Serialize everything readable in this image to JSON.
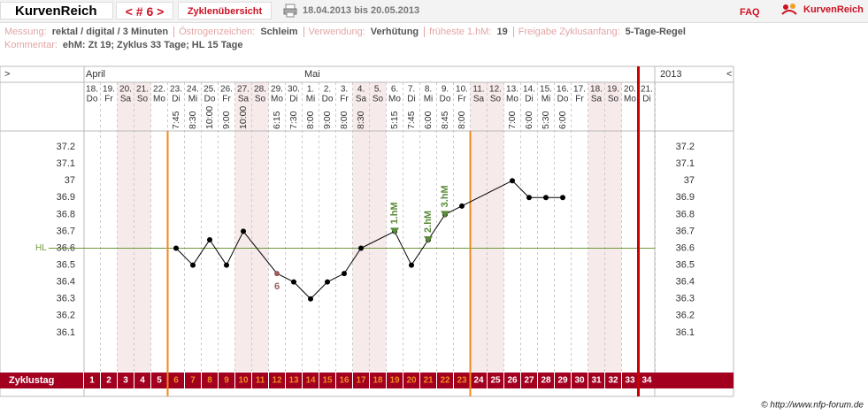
{
  "header": {
    "app": "KurvenReich",
    "cycle_nav": "< # 6 >",
    "overview": "Zyklenübersicht",
    "range": "18.04.2013 bis 20.05.2013",
    "faq": "FAQ",
    "logo": "KurvenReich"
  },
  "info": {
    "rows": [
      [
        {
          "label": "Messung:",
          "value": "rektal / digital / 3 Minuten"
        },
        {
          "label": "Östrogenzeichen:",
          "value": "Schleim"
        },
        {
          "label": "Verwendung:",
          "value": "Verhütung"
        },
        {
          "label": "früheste 1.hM:",
          "value": "19"
        },
        {
          "label": "Freigabe Zyklusanfang:",
          "value": "5-Tage-Regel"
        }
      ],
      [
        {
          "label": "Kommentar:",
          "value": "ehM: Zt 19; Zyklus 33 Tage; HL 15 Tage"
        }
      ]
    ]
  },
  "footer": "© http://www.nfp-forum.de",
  "chart_data": {
    "type": "line",
    "nav": [
      ">",
      "<"
    ],
    "year": "2013",
    "months": [
      "April",
      "Mai"
    ],
    "cycle_label": "Zyklustag",
    "cycle_days": [
      1,
      2,
      3,
      4,
      5,
      6,
      7,
      8,
      9,
      10,
      11,
      12,
      13,
      14,
      15,
      16,
      17,
      18,
      19,
      20,
      21,
      22,
      23,
      24,
      25,
      26,
      27,
      28,
      29,
      30,
      31,
      32,
      33,
      34
    ],
    "dates": [
      "18.",
      "19.",
      "20.",
      "21.",
      "22.",
      "23.",
      "24.",
      "25.",
      "26.",
      "27.",
      "28.",
      "29.",
      "30.",
      "1.",
      "2.",
      "3.",
      "4.",
      "5.",
      "6.",
      "7.",
      "8.",
      "9.",
      "10.",
      "11.",
      "12.",
      "13.",
      "14.",
      "15.",
      "16.",
      "17.",
      "18.",
      "19.",
      "20.",
      "21."
    ],
    "weekdays": [
      "Do",
      "Fr",
      "Sa",
      "So",
      "Mo",
      "Di",
      "Mi",
      "Do",
      "Fr",
      "Sa",
      "So",
      "Mo",
      "Di",
      "Mi",
      "Do",
      "Fr",
      "Sa",
      "So",
      "Mo",
      "Di",
      "Mi",
      "Do",
      "Fr",
      "Sa",
      "So",
      "Mo",
      "Di",
      "Mi",
      "Do",
      "Fr",
      "Sa",
      "So",
      "Mo",
      "Di"
    ],
    "times": [
      null,
      null,
      null,
      null,
      null,
      "7:45",
      "8:30",
      "10:00",
      "9:00",
      "10:00",
      null,
      "6:15",
      "7:30",
      "8:00",
      "9:00",
      "8:00",
      "8:30",
      null,
      "5:15",
      "7:45",
      "6:00",
      "8:45",
      "8:00",
      null,
      null,
      "7:00",
      "6:00",
      "5:30",
      "6:00",
      null,
      null,
      null,
      null,
      null
    ],
    "values": [
      null,
      null,
      null,
      null,
      null,
      36.6,
      36.5,
      36.65,
      36.5,
      36.7,
      null,
      36.45,
      36.4,
      36.3,
      36.4,
      36.45,
      36.6,
      null,
      36.7,
      36.5,
      36.65,
      36.8,
      36.85,
      null,
      null,
      37.0,
      36.9,
      36.9,
      36.9,
      null,
      null,
      null,
      null,
      null
    ],
    "color": "#000000",
    "ylim": [
      35.9,
      37.3
    ],
    "yticks": [
      36.1,
      36.2,
      36.3,
      36.4,
      36.5,
      36.6,
      36.7,
      36.8,
      36.9,
      37,
      37.1,
      37.2
    ],
    "coverline": {
      "label": "HL",
      "value": 36.6,
      "color": "#6e9a3c"
    },
    "hm_markers": [
      {
        "label": "1.hM",
        "day": 19
      },
      {
        "label": "2.hM",
        "day": 21
      },
      {
        "label": "3.hM",
        "day": 22
      }
    ],
    "hm_color": "#5a8a3a",
    "disturbed": [
      {
        "label": "6",
        "day": 12
      }
    ],
    "disturbed_color": "#9a5a5a",
    "fertile_window": [
      6,
      23
    ],
    "fertile_color": "#f08a1e",
    "cycle_end": 33,
    "cycle_end_color": "#cc0000",
    "shaded_days": [
      3,
      4,
      10,
      11,
      17,
      18,
      24,
      25,
      31,
      32
    ]
  }
}
